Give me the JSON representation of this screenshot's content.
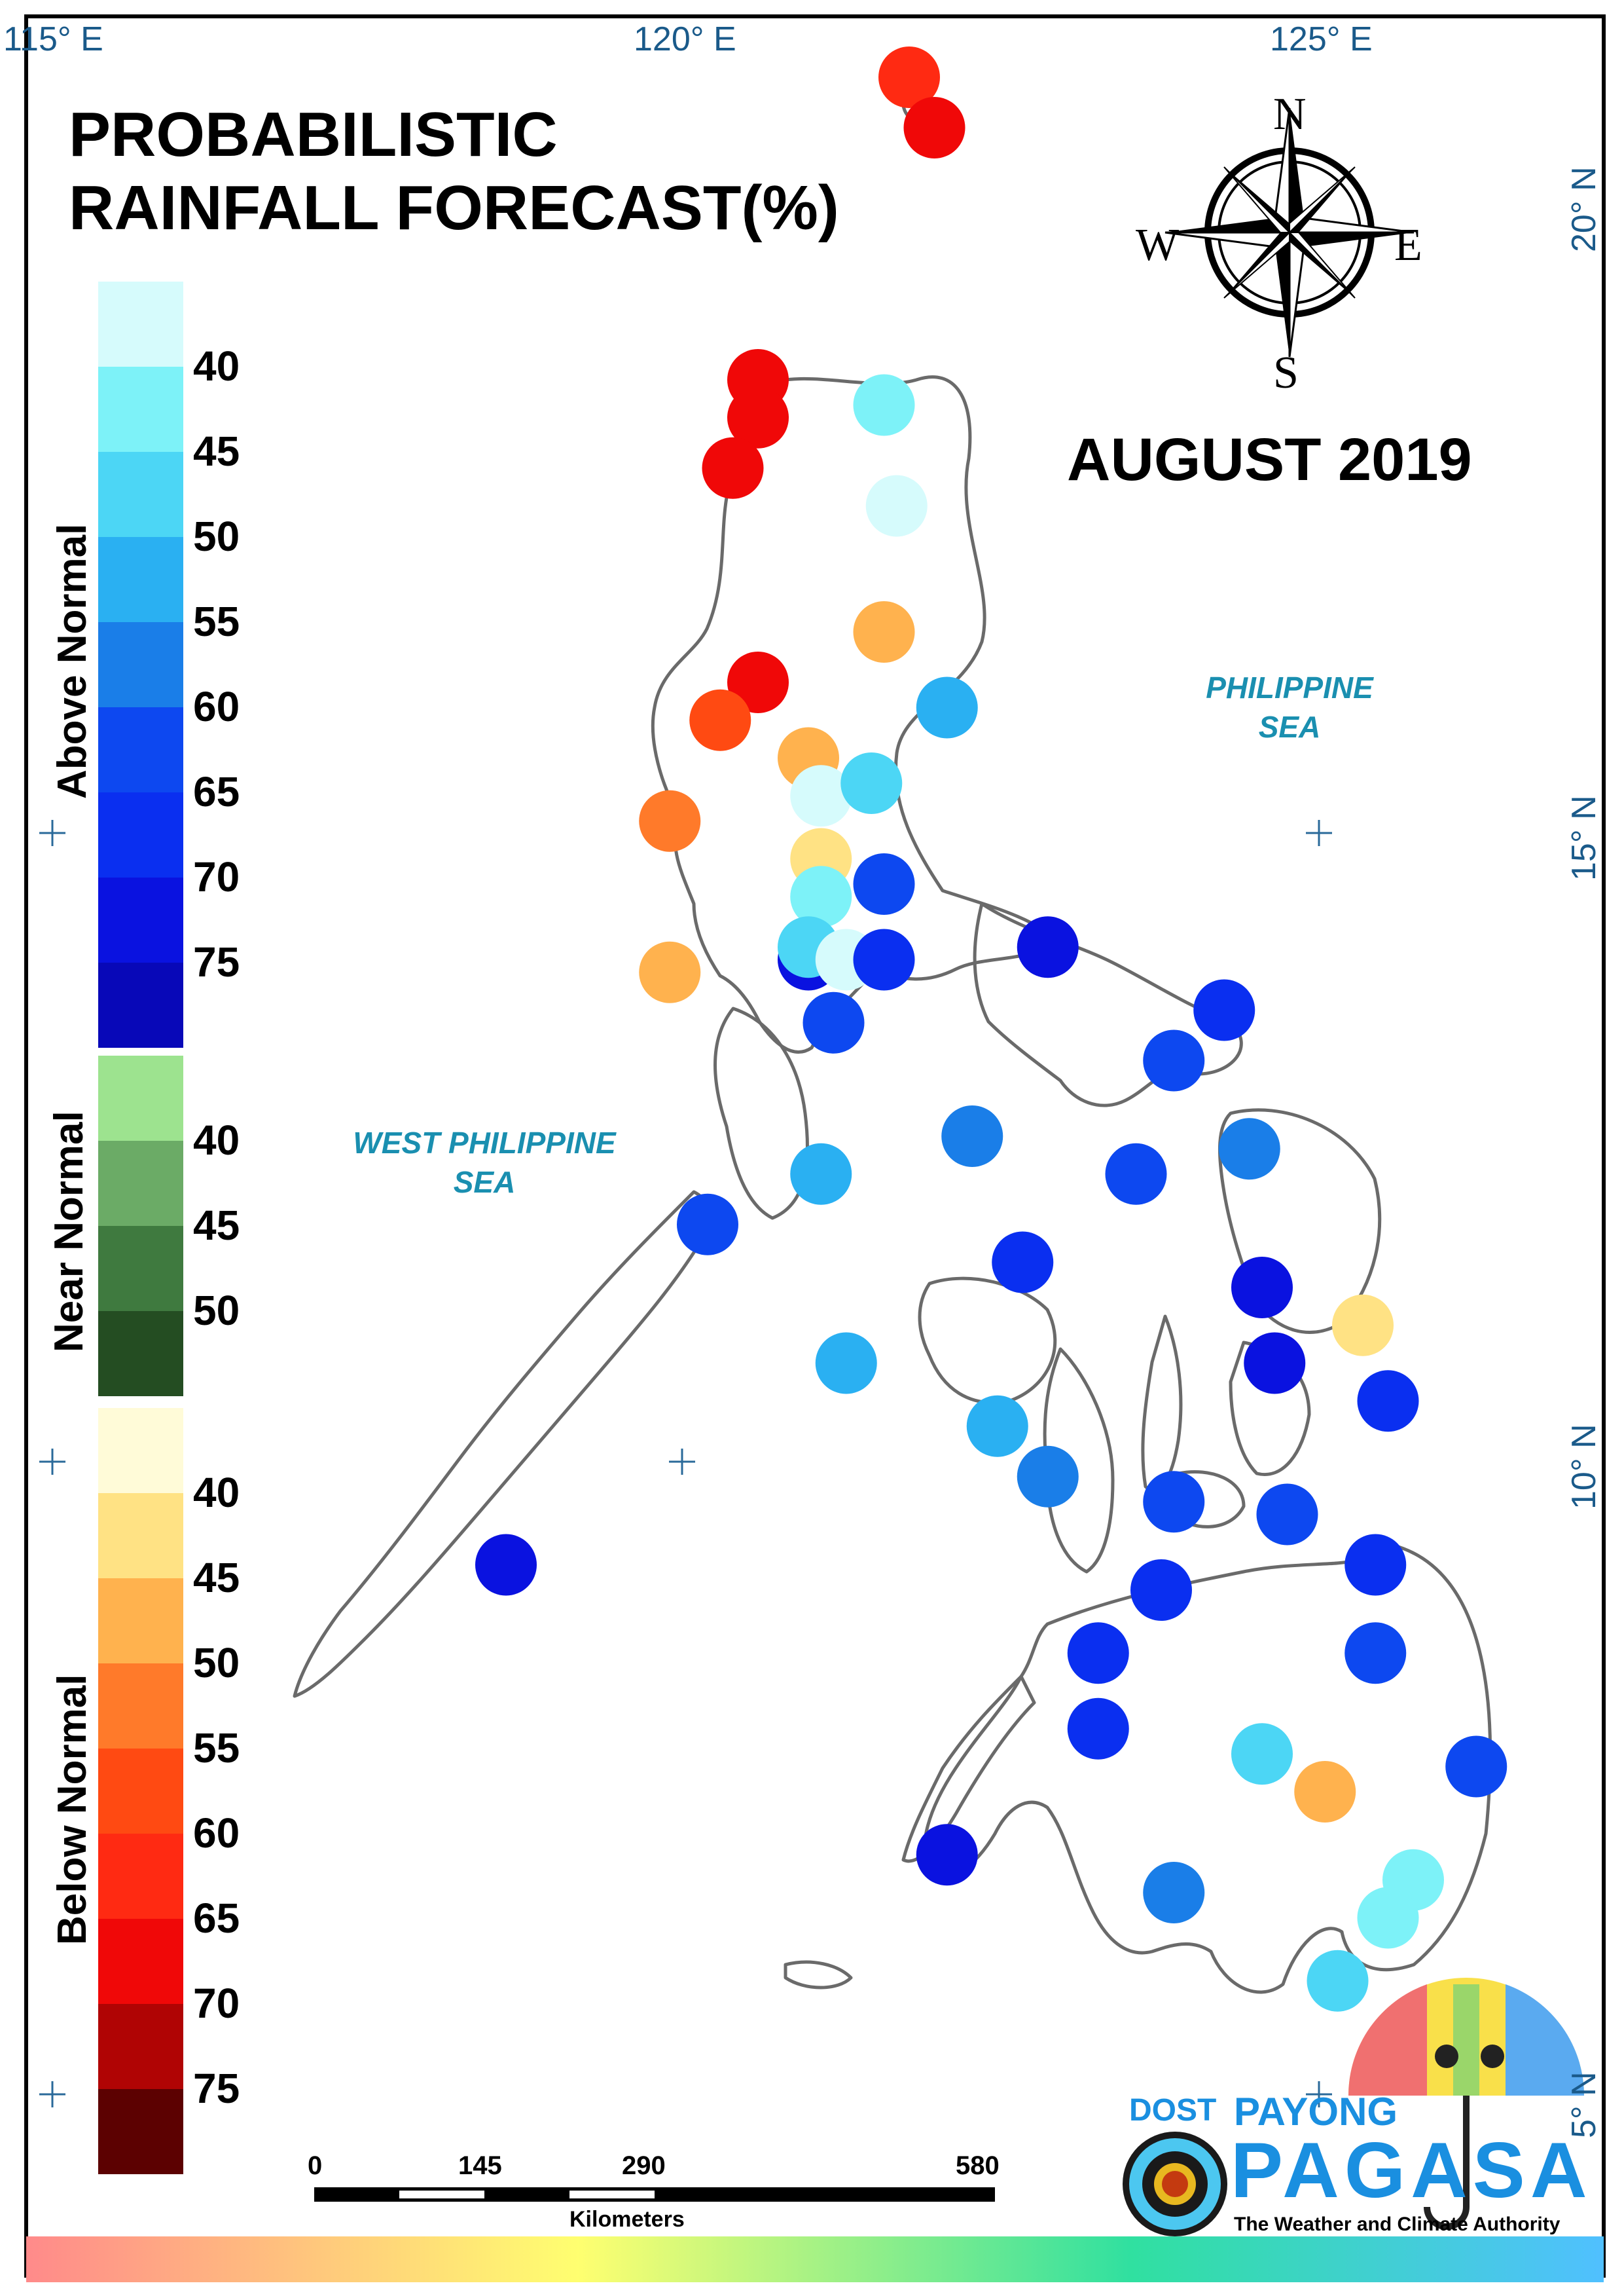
{
  "title_line1": "PROBABILISTIC",
  "title_line2": "RAINFALL FORECAST(%)",
  "month": "AUGUST 2019",
  "coordinates": {
    "lon_115": "115° E",
    "lon_120": "120° E",
    "lon_125": "125° E",
    "lat_20": "20° N",
    "lat_15": "15° N",
    "lat_10": "10° N",
    "lat_5": "5° N"
  },
  "seas": {
    "philippine_line1": "PHILIPPINE",
    "philippine_line2": "SEA",
    "west_line1": "WEST PHILIPPINE",
    "west_line2": "SEA"
  },
  "compass": {
    "n": "N",
    "e": "E",
    "s": "S",
    "w": "W"
  },
  "legend": {
    "above": {
      "label": "Above Normal",
      "ticks": [
        "40",
        "45",
        "50",
        "55",
        "60",
        "65",
        "70",
        "75"
      ],
      "colors": [
        "#d6fbfc",
        "#7df2f8",
        "#4cd6f5",
        "#2ab0f2",
        "#1a7ee8",
        "#0d48f0",
        "#0a2ff0",
        "#0a12e0",
        "#0808b8"
      ]
    },
    "near": {
      "label": "Near Normal",
      "ticks": [
        "40",
        "45",
        "50"
      ],
      "colors": [
        "#9de38f",
        "#6bab66",
        "#3f7a3f",
        "#244d22"
      ]
    },
    "below": {
      "label": "Below Normal",
      "ticks": [
        "40",
        "45",
        "50",
        "55",
        "60",
        "65",
        "70",
        "75"
      ],
      "colors": [
        "#fffbd8",
        "#ffe284",
        "#ffb24e",
        "#ff7a2a",
        "#ff4a12",
        "#ff2a12",
        "#f00808",
        "#b00404",
        "#5c0101"
      ]
    }
  },
  "scale_bar": {
    "labels": [
      "0",
      "145",
      "290",
      "580"
    ],
    "unit": "Kilometers"
  },
  "logo": {
    "dost": "DOST",
    "payong": "PAYONG",
    "pagasa": "PAGASA",
    "tagline": "The Weather and Climate Authority"
  },
  "stations": [
    {
      "lon": 121.8,
      "lat": 21.0,
      "color": "#ff2a12"
    },
    {
      "lon": 122.0,
      "lat": 20.6,
      "color": "#f00808"
    },
    {
      "lon": 120.6,
      "lat": 18.6,
      "color": "#f00808"
    },
    {
      "lon": 120.6,
      "lat": 18.3,
      "color": "#f00808"
    },
    {
      "lon": 120.4,
      "lat": 17.9,
      "color": "#f00808"
    },
    {
      "lon": 121.6,
      "lat": 18.4,
      "color": "#7df2f8"
    },
    {
      "lon": 121.7,
      "lat": 17.6,
      "color": "#d6fbfc"
    },
    {
      "lon": 121.6,
      "lat": 16.6,
      "color": "#ffb24e"
    },
    {
      "lon": 122.1,
      "lat": 16.0,
      "color": "#2ab0f2"
    },
    {
      "lon": 120.6,
      "lat": 16.2,
      "color": "#f00808"
    },
    {
      "lon": 120.3,
      "lat": 15.9,
      "color": "#ff4a12"
    },
    {
      "lon": 121.0,
      "lat": 15.6,
      "color": "#ffb24e"
    },
    {
      "lon": 121.1,
      "lat": 15.3,
      "color": "#d6fbfc"
    },
    {
      "lon": 121.5,
      "lat": 15.4,
      "color": "#4cd6f5"
    },
    {
      "lon": 119.9,
      "lat": 15.1,
      "color": "#ff7a2a"
    },
    {
      "lon": 121.1,
      "lat": 14.8,
      "color": "#ffe284"
    },
    {
      "lon": 121.1,
      "lat": 14.5,
      "color": "#7df2f8"
    },
    {
      "lon": 121.6,
      "lat": 14.6,
      "color": "#0d48f0"
    },
    {
      "lon": 121.0,
      "lat": 14.0,
      "color": "#0a12e0"
    },
    {
      "lon": 121.0,
      "lat": 14.1,
      "color": "#4cd6f5"
    },
    {
      "lon": 121.3,
      "lat": 14.0,
      "color": "#d6fbfc"
    },
    {
      "lon": 121.6,
      "lat": 14.0,
      "color": "#0a2ff0"
    },
    {
      "lon": 119.9,
      "lat": 13.9,
      "color": "#ffb24e"
    },
    {
      "lon": 121.2,
      "lat": 13.5,
      "color": "#0d48f0"
    },
    {
      "lon": 122.9,
      "lat": 14.1,
      "color": "#0a12e0"
    },
    {
      "lon": 124.3,
      "lat": 13.6,
      "color": "#0a2ff0"
    },
    {
      "lon": 123.9,
      "lat": 13.2,
      "color": "#0d48f0"
    },
    {
      "lon": 121.1,
      "lat": 12.3,
      "color": "#2ab0f2"
    },
    {
      "lon": 122.3,
      "lat": 12.6,
      "color": "#1a7ee8"
    },
    {
      "lon": 123.6,
      "lat": 12.3,
      "color": "#0d48f0"
    },
    {
      "lon": 124.5,
      "lat": 12.5,
      "color": "#1a7ee8"
    },
    {
      "lon": 120.2,
      "lat": 11.9,
      "color": "#0d48f0"
    },
    {
      "lon": 122.7,
      "lat": 11.6,
      "color": "#0a2ff0"
    },
    {
      "lon": 124.6,
      "lat": 11.4,
      "color": "#0a12e0"
    },
    {
      "lon": 125.4,
      "lat": 11.1,
      "color": "#ffe284"
    },
    {
      "lon": 124.7,
      "lat": 10.8,
      "color": "#0a12e0"
    },
    {
      "lon": 125.6,
      "lat": 10.5,
      "color": "#0a2ff0"
    },
    {
      "lon": 121.3,
      "lat": 10.8,
      "color": "#2ab0f2"
    },
    {
      "lon": 122.5,
      "lat": 10.3,
      "color": "#2ab0f2"
    },
    {
      "lon": 122.9,
      "lat": 9.9,
      "color": "#1a7ee8"
    },
    {
      "lon": 123.9,
      "lat": 9.7,
      "color": "#0d48f0"
    },
    {
      "lon": 124.8,
      "lat": 9.6,
      "color": "#0d48f0"
    },
    {
      "lon": 125.5,
      "lat": 9.2,
      "color": "#0a2ff0"
    },
    {
      "lon": 118.6,
      "lat": 9.2,
      "color": "#0a12e0"
    },
    {
      "lon": 123.8,
      "lat": 9.0,
      "color": "#0a2ff0"
    },
    {
      "lon": 123.3,
      "lat": 8.5,
      "color": "#0a2ff0"
    },
    {
      "lon": 125.5,
      "lat": 8.5,
      "color": "#0d48f0"
    },
    {
      "lon": 123.3,
      "lat": 7.9,
      "color": "#0a2ff0"
    },
    {
      "lon": 124.6,
      "lat": 7.7,
      "color": "#4cd6f5"
    },
    {
      "lon": 125.1,
      "lat": 7.4,
      "color": "#ffb24e"
    },
    {
      "lon": 126.3,
      "lat": 7.6,
      "color": "#0d48f0"
    },
    {
      "lon": 123.9,
      "lat": 6.6,
      "color": "#1a7ee8"
    },
    {
      "lon": 125.8,
      "lat": 6.7,
      "color": "#7df2f8"
    },
    {
      "lon": 125.6,
      "lat": 6.4,
      "color": "#7df2f8"
    },
    {
      "lon": 122.1,
      "lat": 6.9,
      "color": "#0a12e0"
    },
    {
      "lon": 125.2,
      "lat": 5.9,
      "color": "#4cd6f5"
    }
  ]
}
